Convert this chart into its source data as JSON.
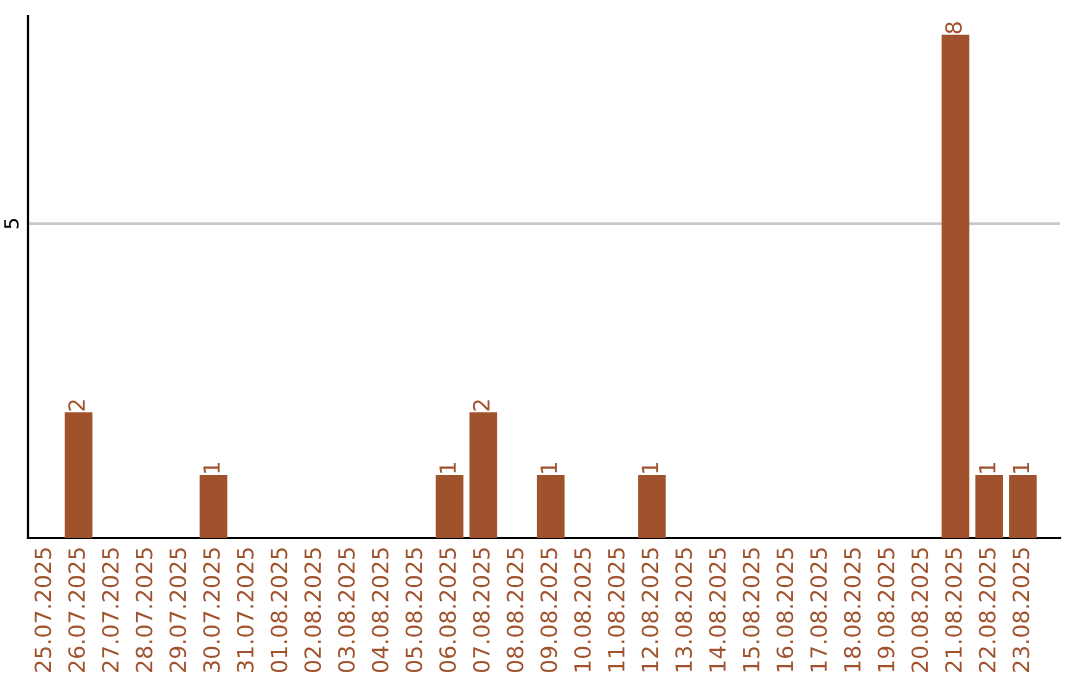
{
  "chart_data": {
    "type": "bar",
    "categories": [
      "25.07.2025",
      "26.07.2025",
      "27.07.2025",
      "28.07.2025",
      "29.07.2025",
      "30.07.2025",
      "31.07.2025",
      "01.08.2025",
      "02.08.2025",
      "03.08.2025",
      "04.08.2025",
      "05.08.2025",
      "06.08.2025",
      "07.08.2025",
      "08.08.2025",
      "09.08.2025",
      "10.08.2025",
      "11.08.2025",
      "12.08.2025",
      "13.08.2025",
      "14.08.2025",
      "15.08.2025",
      "16.08.2025",
      "17.08.2025",
      "18.08.2025",
      "19.08.2025",
      "20.08.2025",
      "21.08.2025",
      "22.08.2025",
      "23.08.2025"
    ],
    "values": [
      0,
      2,
      0,
      0,
      0,
      1,
      0,
      0,
      0,
      0,
      0,
      0,
      1,
      2,
      0,
      1,
      0,
      0,
      1,
      0,
      0,
      0,
      0,
      0,
      0,
      0,
      0,
      8,
      1,
      1
    ],
    "value_labels": [
      null,
      "2",
      null,
      null,
      null,
      "1",
      null,
      null,
      null,
      null,
      null,
      null,
      "1",
      "2",
      null,
      "1",
      null,
      null,
      "1",
      null,
      null,
      null,
      null,
      null,
      null,
      null,
      null,
      "8",
      "1",
      "1"
    ],
    "color": "#a0522d",
    "ylim": [
      0,
      8.3
    ],
    "yticks": [
      5
    ],
    "grid": "y",
    "legend": false
  }
}
